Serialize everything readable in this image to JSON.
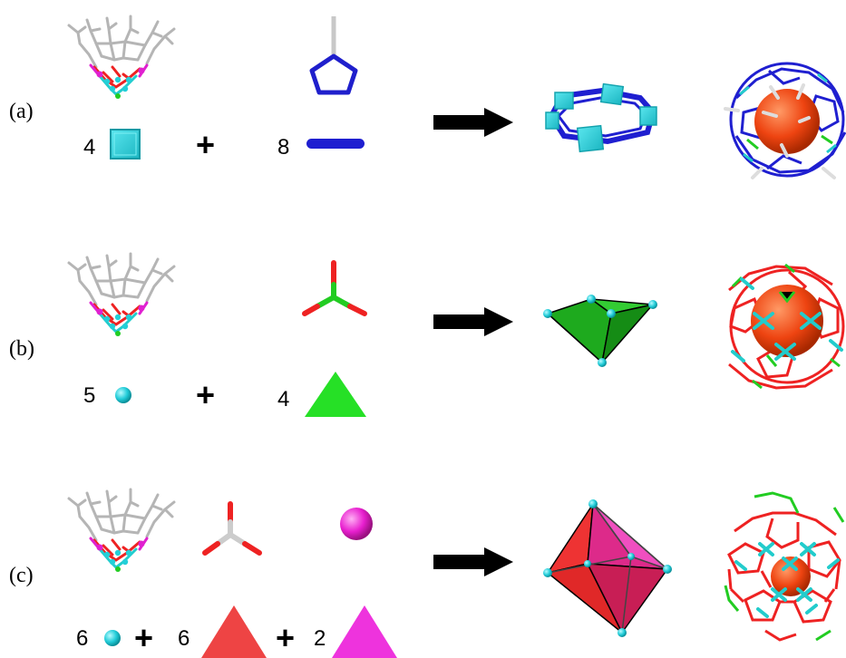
{
  "rows": [
    {
      "label": "(a)",
      "count1": "4",
      "plus1": "+",
      "count2": "8"
    },
    {
      "label": "(b)",
      "count1": "5",
      "plus1": "+",
      "count2": "4"
    },
    {
      "label": "(c)",
      "count1": "6",
      "plus1": "+",
      "count2": "6",
      "plus2": "+",
      "count3": "2"
    }
  ],
  "colors": {
    "cyan": "#2fd3dc",
    "blue": "#1a1acc",
    "green": "#22cc22",
    "red": "#ee3333",
    "magenta": "#ee22cc",
    "orange": "#ee4411",
    "gray": "#bbbbbb"
  }
}
